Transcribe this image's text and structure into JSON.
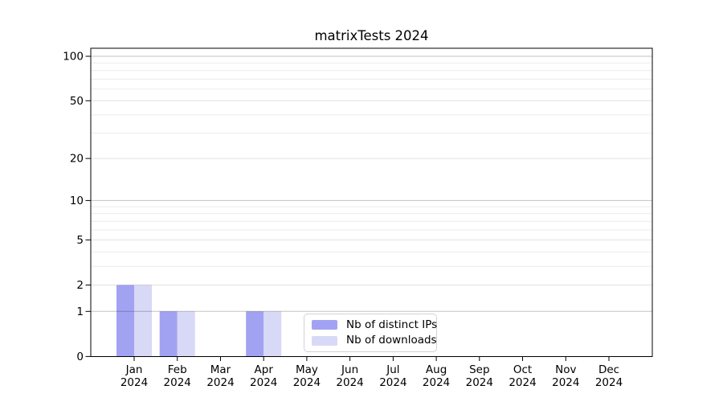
{
  "chart_data": {
    "type": "bar",
    "title": "matrixTests 2024",
    "categories": [
      "Jan 2024",
      "Feb 2024",
      "Mar 2024",
      "Apr 2024",
      "May 2024",
      "Jun 2024",
      "Jul 2024",
      "Aug 2024",
      "Sep 2024",
      "Oct 2024",
      "Nov 2024",
      "Dec 2024"
    ],
    "x_tick_line1": [
      "Jan",
      "Feb",
      "Mar",
      "Apr",
      "May",
      "Jun",
      "Jul",
      "Aug",
      "Sep",
      "Oct",
      "Nov",
      "Dec"
    ],
    "x_tick_line2": [
      "2024",
      "2024",
      "2024",
      "2024",
      "2024",
      "2024",
      "2024",
      "2024",
      "2024",
      "2024",
      "2024",
      "2024"
    ],
    "series": [
      {
        "name": "Nb of distinct IPs",
        "color": "#a2a2f2",
        "values": [
          2,
          1,
          0,
          1,
          0,
          0,
          0,
          0,
          0,
          0,
          0,
          0
        ]
      },
      {
        "name": "Nb of downloads",
        "color": "#d8d8f7",
        "values": [
          2,
          1,
          0,
          1,
          0,
          0,
          0,
          0,
          0,
          0,
          0,
          0
        ]
      }
    ],
    "y_axis": {
      "scale": "symlog (log10 of 1+x, 0 at baseline)",
      "tick_labels": [
        0,
        1,
        2,
        5,
        10,
        20,
        50,
        100
      ],
      "major_grid_values": [
        1,
        10,
        100
      ],
      "labeled_minor_grid_values": [
        2,
        5,
        20,
        50
      ],
      "minor_grid_values": [
        3,
        4,
        6,
        7,
        8,
        9,
        30,
        40,
        60,
        70,
        80,
        90
      ],
      "ylim": [
        0,
        113
      ]
    },
    "legend": {
      "position": "inside bottom-center",
      "items": [
        "Nb of distinct IPs",
        "Nb of downloads"
      ]
    },
    "grid": "horizontal"
  }
}
